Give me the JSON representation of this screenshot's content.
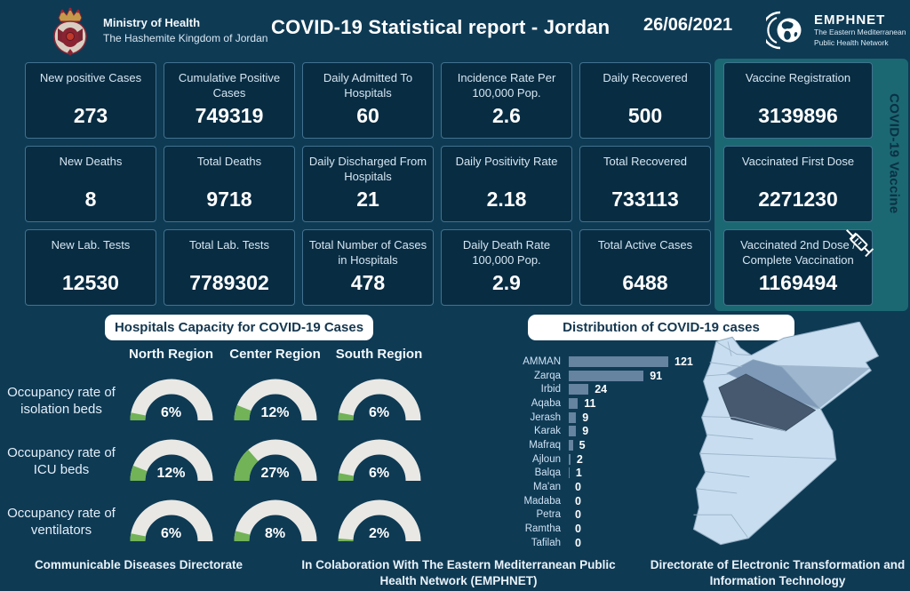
{
  "colors": {
    "page_bg": "#0e3a54",
    "card_bg": "#082c42",
    "card_border": "#41728f",
    "teal_panel": "#1b6872",
    "gauge_track": "#e9e8e4",
    "gauge_fill": "#71b356",
    "bar_fill": "#66839f",
    "map_base": "#c8def0",
    "map_amman_dark": "#46596f",
    "map_zarqa_medium": "#7e9ab8",
    "pill_bg": "#ffffff",
    "pill_text": "#14374f"
  },
  "header": {
    "ministry_name": "Ministry of Health",
    "ministry_subtitle": "The Hashemite Kingdom of Jordan",
    "ministry_logo_icon": "jordan-royal-crest",
    "title": "COVID-19 Statistical report - Jordan",
    "date": "26/06/2021",
    "emphnet_name": "EMPHNET",
    "emphnet_subtitle_line1": "The Eastern Mediterranean",
    "emphnet_subtitle_line2": "Public Health Network",
    "emphnet_logo_icon": "globe-crescent"
  },
  "stats_cards": [
    {
      "label": "New positive Cases",
      "value": "273"
    },
    {
      "label": "Cumulative  Positive Cases",
      "value": "749319"
    },
    {
      "label": "Daily Admitted To Hospitals",
      "value": "60"
    },
    {
      "label": "Incidence Rate Per 100,000 Pop.",
      "value": "2.6"
    },
    {
      "label": "Daily Recovered",
      "value": "500"
    },
    {
      "label": "New Deaths",
      "value": "8"
    },
    {
      "label": "Total Deaths",
      "value": "9718"
    },
    {
      "label": "Daily Discharged From Hospitals",
      "value": "21"
    },
    {
      "label": "Daily Positivity Rate",
      "value": "2.18"
    },
    {
      "label": "Total Recovered",
      "value": "733113"
    },
    {
      "label": "New Lab. Tests",
      "value": "12530"
    },
    {
      "label": "Total Lab. Tests",
      "value": "7789302"
    },
    {
      "label": "Total Number of Cases in Hospitals",
      "value": "478"
    },
    {
      "label": "Daily Death Rate 100,000 Pop.",
      "value": "2.9"
    },
    {
      "label": "Total Active Cases",
      "value": "6488"
    }
  ],
  "vaccine_panel": {
    "side_label": "COVID-19 Vaccine",
    "syringe_icon": "syringe-icon",
    "cards": [
      {
        "label": "Vaccine Registration",
        "value": "3139896"
      },
      {
        "label": "Vaccinated First Dose",
        "value": "2271230"
      },
      {
        "label": "Vaccinated 2nd Dose / Complete Vaccination",
        "value": "1169494"
      }
    ]
  },
  "chart_data": [
    {
      "type": "gauge",
      "title": "Hospitals Capacity for COVID-19 Cases",
      "columns": [
        "North Region",
        "Center Region",
        "South Region"
      ],
      "rows": [
        {
          "label": "Occupancy rate of isolation beds",
          "values_pct": [
            6,
            12,
            6
          ]
        },
        {
          "label": "Occupancy rate of ICU beds",
          "values_pct": [
            12,
            27,
            6
          ]
        },
        {
          "label": "Occupancy rate of ventilators",
          "values_pct": [
            6,
            8,
            2
          ]
        }
      ],
      "range": [
        0,
        100
      ],
      "unit": "%"
    },
    {
      "type": "bar",
      "title": "Distribution of COVID-19 cases",
      "orientation": "horizontal",
      "categories": [
        "AMMAN",
        "Zarqa",
        "Irbid",
        "Aqaba",
        "Jerash",
        "Karak",
        "Mafraq",
        "Ajloun",
        "Balqa",
        "Ma'an",
        "Madaba",
        "Petra",
        "Ramtha",
        "Tafilah"
      ],
      "values": [
        121,
        91,
        24,
        11,
        9,
        9,
        5,
        2,
        1,
        0,
        0,
        0,
        0,
        0
      ],
      "xlim": [
        0,
        130
      ],
      "value_labels_shown": true,
      "legend": "none",
      "grid": false
    }
  ],
  "map": {
    "name": "jordan-governorates-map",
    "highlight_dark_region": "Amman",
    "highlight_medium_region": "Zarqa"
  },
  "footer": {
    "left": "Communicable Diseases Directorate",
    "center": "In Colaboration With The Eastern Mediterranean Public Health Network (EMPHNET)",
    "right": "Directorate of Electronic Transformation and  Information Technology"
  }
}
